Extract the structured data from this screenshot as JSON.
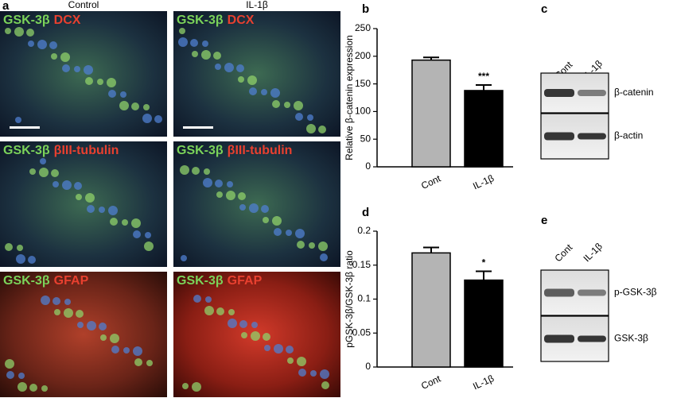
{
  "panel_a": {
    "panel": "a",
    "columns": [
      "Control",
      "IL-1β"
    ],
    "rows": [
      {
        "marker": "GSK-3β",
        "stain": "DCX"
      },
      {
        "marker": "GSK-3β",
        "stain": "βIII-tubulin"
      },
      {
        "marker": "GSK-3β",
        "stain": "GFAP"
      }
    ]
  },
  "chart_data": [
    {
      "type": "bar",
      "panel": "b",
      "y_label": "Relative β-catenin expression",
      "categories": [
        "Cont",
        "IL-1β"
      ],
      "values": [
        193,
        138
      ],
      "errors": [
        5,
        10
      ],
      "colors": [
        "#b4b4b4",
        "#000000"
      ],
      "significance": [
        null,
        "***"
      ],
      "ylim": [
        0,
        250
      ],
      "yticks": [
        0,
        50,
        100,
        150,
        200,
        250
      ]
    },
    {
      "type": "bar",
      "panel": "d",
      "y_label": "pGSK-3β/GSK-3β ratio",
      "categories": [
        "Cont",
        "IL-1β"
      ],
      "values": [
        0.168,
        0.128
      ],
      "errors": [
        0.008,
        0.013
      ],
      "colors": [
        "#b4b4b4",
        "#000000"
      ],
      "significance": [
        null,
        "*"
      ],
      "ylim": [
        0,
        0.2
      ],
      "yticks": [
        0,
        0.05,
        0.1,
        0.15,
        0.2
      ]
    }
  ],
  "blot_c": {
    "panel": "c",
    "lanes": [
      "Cont",
      "IL-1β"
    ],
    "bands": [
      "β-catenin",
      "β-actin"
    ]
  },
  "blot_e": {
    "panel": "e",
    "lanes": [
      "Cont",
      "IL-1β"
    ],
    "bands": [
      "p-GSK-3β",
      "GSK-3β"
    ]
  }
}
